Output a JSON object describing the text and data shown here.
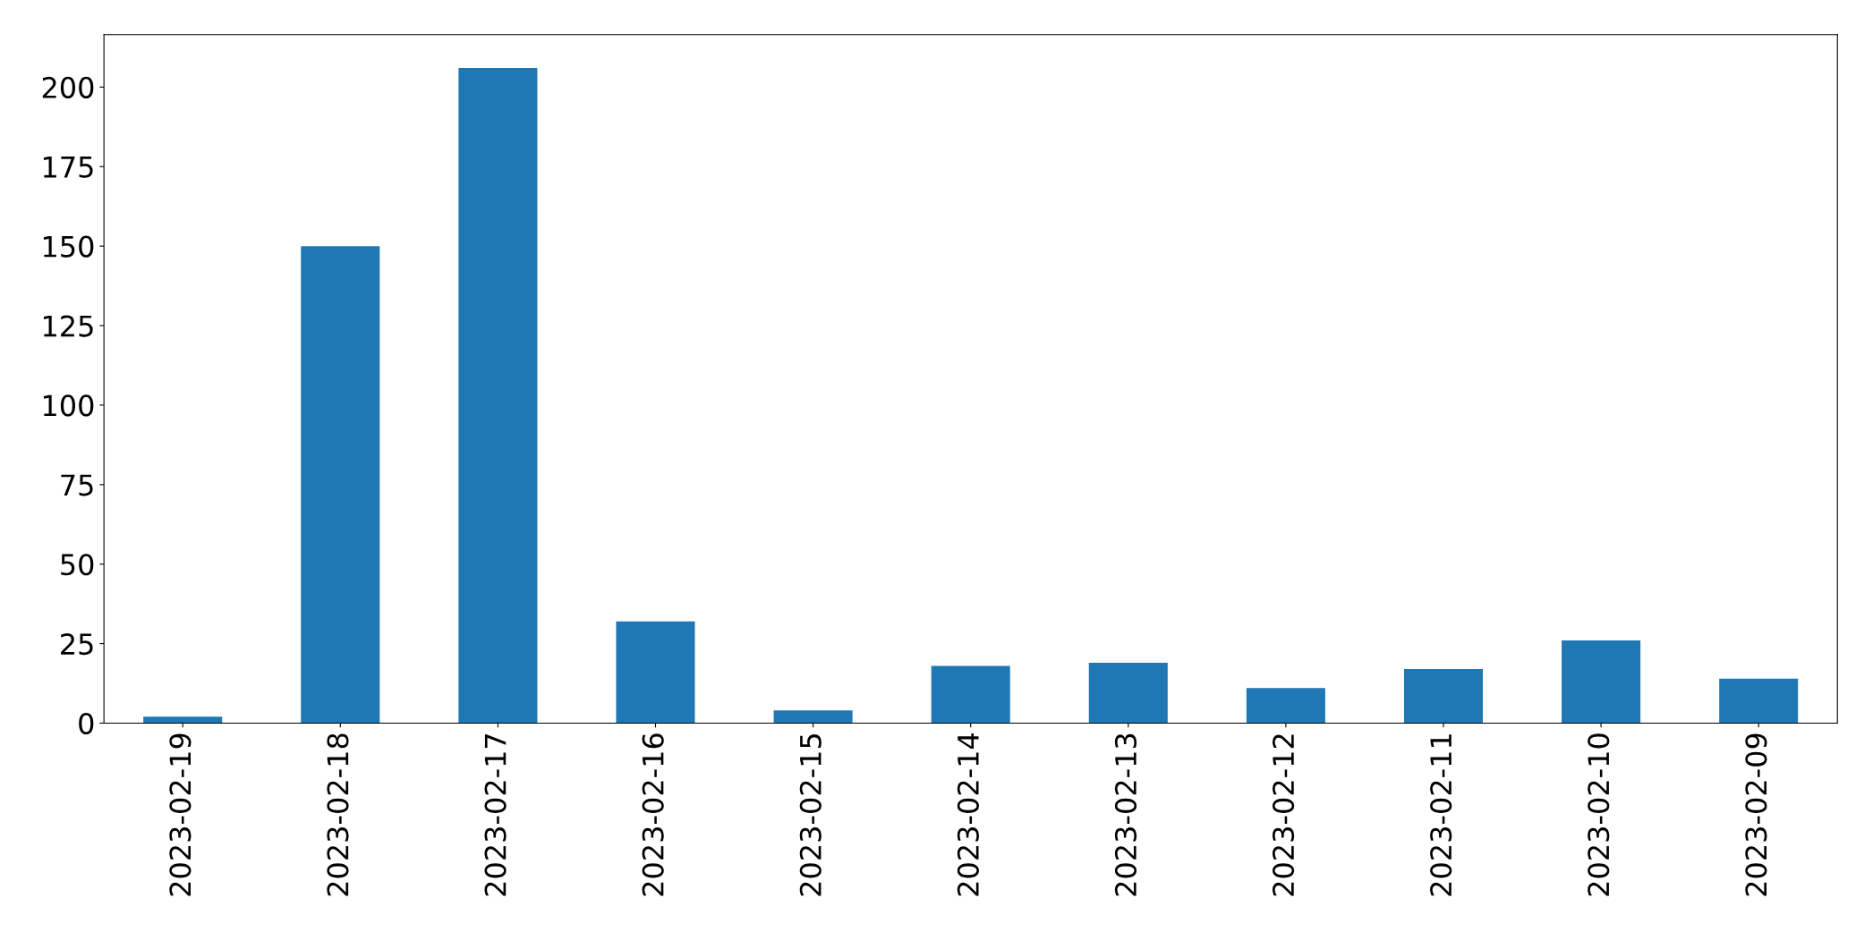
{
  "chart_data": {
    "type": "bar",
    "categories": [
      "2023-02-19",
      "2023-02-18",
      "2023-02-17",
      "2023-02-16",
      "2023-02-15",
      "2023-02-14",
      "2023-02-13",
      "2023-02-12",
      "2023-02-11",
      "2023-02-10",
      "2023-02-09"
    ],
    "values": [
      2,
      150,
      206,
      32,
      4,
      18,
      19,
      11,
      17,
      26,
      14
    ],
    "color": "#1f77b4",
    "ylim": [
      0,
      216.5
    ],
    "yticks": [
      0,
      25,
      50,
      75,
      100,
      125,
      150,
      175,
      200
    ],
    "grid": false,
    "legend": false
  }
}
